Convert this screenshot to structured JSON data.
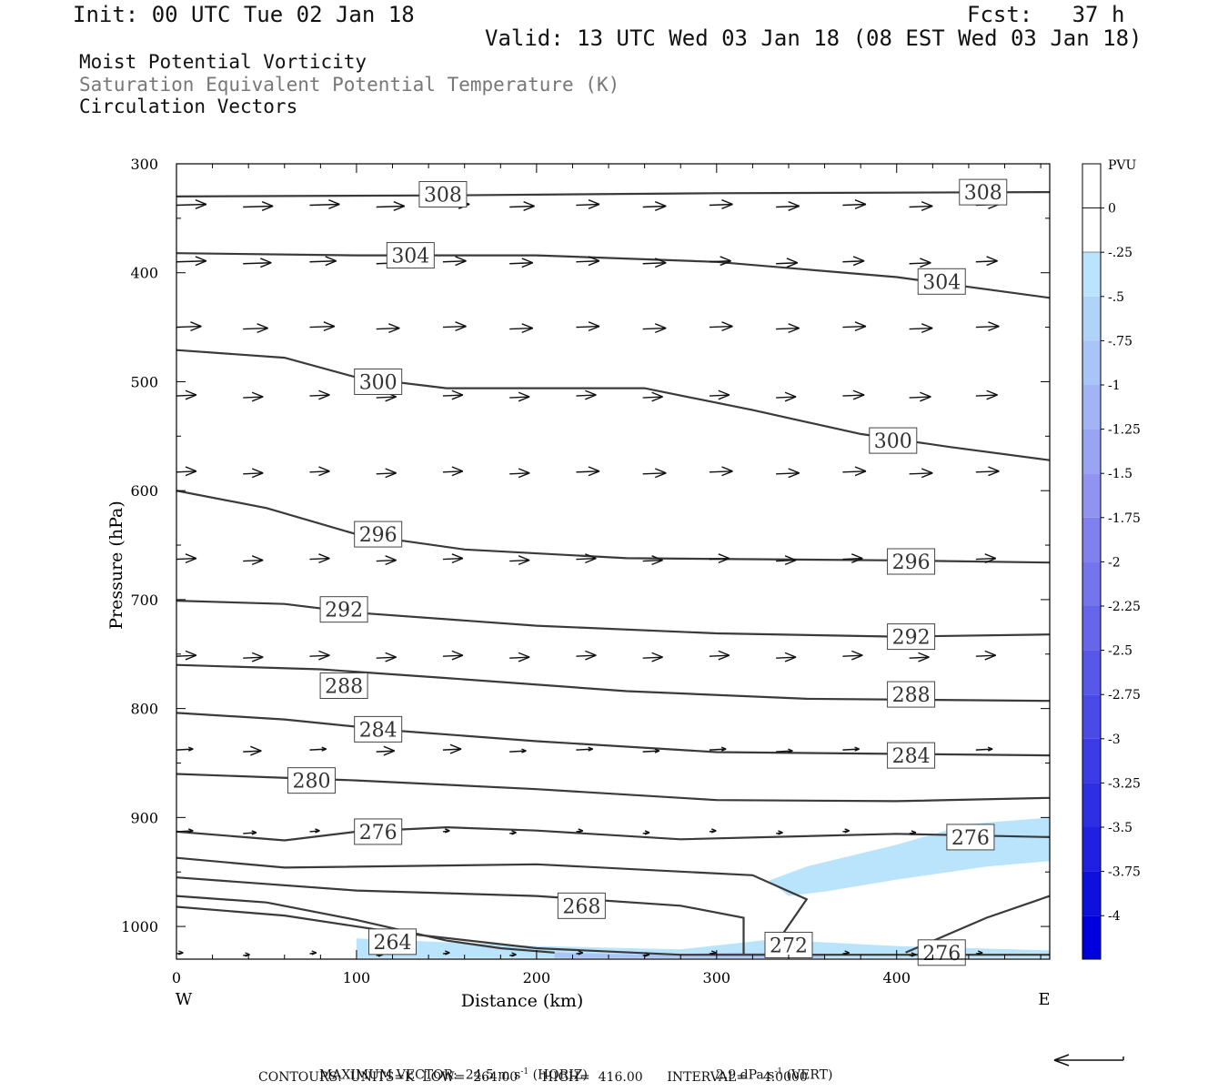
{
  "header": {
    "init": "Init: 00 UTC Tue 02 Jan 18",
    "fcst": "Fcst:   37 h",
    "valid": "Valid: 13 UTC Wed 03 Jan 18 (08 EST Wed 03 Jan 18)",
    "fields": [
      "Moist Potential Vorticity",
      "Saturation Equivalent Potential Temperature (K)",
      "Circulation Vectors"
    ]
  },
  "colors": {
    "contour": "#3a3a3a",
    "pv_light": "#b9e4fb",
    "pv_mid": "#a9c4f6",
    "text": "#111111"
  },
  "chart_data": {
    "type": "cross-section",
    "xlabel": "Distance (km)",
    "ylabel": "Pressure (hPa)",
    "xlim": [
      0,
      485
    ],
    "ylim": [
      1030,
      300
    ],
    "y_log_pressure": false,
    "x_ticks": [
      "0",
      "100",
      "200",
      "300",
      "400"
    ],
    "y_ticks": [
      "300",
      "400",
      "500",
      "600",
      "700",
      "800",
      "900",
      "1000"
    ],
    "x_end_labels": {
      "left": "W",
      "right": "E"
    },
    "contour_labels": [
      "308",
      "308",
      "304",
      "304",
      "300",
      "300",
      "296",
      "296",
      "292",
      "292",
      "288",
      "288",
      "284",
      "284",
      "280",
      "276",
      "276",
      "268",
      "264",
      "272",
      "276"
    ],
    "contours": [
      {
        "value": 308,
        "points": [
          [
            0,
            330
          ],
          [
            150,
            329
          ],
          [
            300,
            327
          ],
          [
            485,
            326
          ]
        ]
      },
      {
        "value": 304,
        "points": [
          [
            0,
            382
          ],
          [
            100,
            384
          ],
          [
            200,
            384
          ],
          [
            300,
            390
          ],
          [
            400,
            404
          ],
          [
            485,
            423
          ]
        ]
      },
      {
        "value": 300,
        "points": [
          [
            0,
            471
          ],
          [
            60,
            478
          ],
          [
            100,
            496
          ],
          [
            150,
            506
          ],
          [
            260,
            506
          ],
          [
            320,
            526
          ],
          [
            380,
            548
          ],
          [
            430,
            560
          ],
          [
            485,
            572
          ]
        ]
      },
      {
        "value": 296,
        "points": [
          [
            0,
            600
          ],
          [
            50,
            616
          ],
          [
            100,
            640
          ],
          [
            160,
            654
          ],
          [
            250,
            662
          ],
          [
            400,
            664
          ],
          [
            485,
            666
          ]
        ]
      },
      {
        "value": 292,
        "points": [
          [
            0,
            701
          ],
          [
            60,
            704
          ],
          [
            100,
            712
          ],
          [
            200,
            724
          ],
          [
            300,
            731
          ],
          [
            400,
            734
          ],
          [
            485,
            732
          ]
        ]
      },
      {
        "value": 288,
        "points": [
          [
            0,
            760
          ],
          [
            80,
            764
          ],
          [
            150,
            772
          ],
          [
            250,
            784
          ],
          [
            350,
            791
          ],
          [
            485,
            793
          ]
        ]
      },
      {
        "value": 284,
        "points": [
          [
            0,
            804
          ],
          [
            60,
            810
          ],
          [
            120,
            820
          ],
          [
            200,
            830
          ],
          [
            300,
            840
          ],
          [
            485,
            843
          ]
        ]
      },
      {
        "value": 280,
        "points": [
          [
            0,
            860
          ],
          [
            100,
            866
          ],
          [
            200,
            874
          ],
          [
            300,
            884
          ],
          [
            400,
            885
          ],
          [
            485,
            882
          ]
        ]
      },
      {
        "value": 276,
        "points": [
          [
            0,
            913
          ],
          [
            60,
            921
          ],
          [
            100,
            913
          ],
          [
            150,
            909
          ],
          [
            200,
            912
          ],
          [
            280,
            920
          ],
          [
            400,
            915
          ],
          [
            485,
            918
          ]
        ]
      },
      {
        "value": 272,
        "points": [
          [
            0,
            937
          ],
          [
            60,
            946
          ],
          [
            200,
            943
          ],
          [
            320,
            953
          ],
          [
            350,
            975
          ],
          [
            330,
            1023
          ]
        ]
      },
      {
        "value": 268,
        "points": [
          [
            0,
            955
          ],
          [
            100,
            967
          ],
          [
            200,
            972
          ],
          [
            280,
            981
          ],
          [
            315,
            992
          ],
          [
            315,
            1025
          ]
        ]
      },
      {
        "value": 264,
        "points": [
          [
            0,
            972
          ],
          [
            50,
            978
          ],
          [
            100,
            994
          ],
          [
            150,
            1013
          ],
          [
            180,
            1020
          ],
          [
            210,
            1024
          ]
        ]
      },
      {
        "value": 264,
        "points": [
          [
            0,
            982
          ],
          [
            60,
            990
          ],
          [
            120,
            1005
          ],
          [
            200,
            1020
          ],
          [
            280,
            1026
          ],
          [
            485,
            1026
          ]
        ]
      },
      {
        "value": 276,
        "points": [
          [
            405,
            1024
          ],
          [
            450,
            992
          ],
          [
            485,
            972
          ]
        ]
      }
    ],
    "pv_shading": [
      {
        "range": [
          -0.5,
          -0.25
        ],
        "polygon": [
          [
            329,
            958
          ],
          [
            350,
            945
          ],
          [
            400,
            925
          ],
          [
            440,
            906
          ],
          [
            485,
            900
          ],
          [
            485,
            940
          ],
          [
            450,
            945
          ],
          [
            400,
            957
          ],
          [
            360,
            968
          ],
          [
            340,
            972
          ]
        ]
      },
      {
        "range": [
          -0.5,
          -0.25
        ],
        "polygon": [
          [
            100,
            1011
          ],
          [
            200,
            1018
          ],
          [
            280,
            1021
          ],
          [
            330,
            1012
          ],
          [
            400,
            1018
          ],
          [
            485,
            1022
          ],
          [
            485,
            1029
          ],
          [
            100,
            1029
          ]
        ]
      },
      {
        "range": [
          -0.75,
          -0.5
        ],
        "polygon": [
          [
            210,
            1024
          ],
          [
            260,
            1026
          ],
          [
            310,
            1024
          ],
          [
            360,
            1025
          ],
          [
            360,
            1029
          ],
          [
            210,
            1029
          ]
        ]
      }
    ],
    "vectors": [
      {
        "p": 338,
        "x0": 0,
        "dx": 37,
        "n": 13,
        "lengths": [
          36,
          36,
          36,
          34,
          32,
          30,
          28,
          28,
          28,
          28,
          28,
          28,
          28
        ]
      },
      {
        "p": 390,
        "x0": 0,
        "dx": 37,
        "n": 13,
        "lengths": [
          36,
          34,
          32,
          30,
          28,
          28,
          28,
          28,
          26,
          26,
          26,
          26,
          26
        ]
      },
      {
        "p": 450,
        "x0": 0,
        "dx": 37,
        "n": 13,
        "lengths": [
          30,
          30,
          30,
          28,
          28,
          28,
          28,
          28,
          28,
          28,
          28,
          28,
          28
        ]
      },
      {
        "p": 513,
        "x0": 0,
        "dx": 37,
        "n": 13,
        "lengths": [
          24,
          24,
          24,
          24,
          24,
          24,
          24,
          24,
          24,
          24,
          26,
          26,
          26
        ]
      },
      {
        "p": 583,
        "x0": 0,
        "dx": 37,
        "n": 13,
        "lengths": [
          24,
          24,
          24,
          24,
          24,
          24,
          28,
          28,
          28,
          28,
          28,
          28,
          28
        ]
      },
      {
        "p": 663,
        "x0": 0,
        "dx": 37,
        "n": 13,
        "lengths": [
          24,
          24,
          24,
          24,
          24,
          24,
          24,
          24,
          24,
          24,
          24,
          24,
          24
        ]
      },
      {
        "p": 752,
        "x0": 0,
        "dx": 37,
        "n": 13,
        "lengths": [
          24,
          24,
          24,
          24,
          24,
          24,
          24,
          24,
          24,
          24,
          24,
          24,
          24
        ]
      },
      {
        "p": 838,
        "x0": 0,
        "dx": 37,
        "n": 13,
        "lengths": [
          20,
          22,
          20,
          22,
          22,
          20,
          20,
          20,
          20,
          20,
          20,
          20,
          20
        ]
      },
      {
        "p": 913,
        "x0": 0,
        "dx": 37,
        "n": 13,
        "lengths": [
          20,
          16,
          12,
          10,
          8,
          8,
          8,
          8,
          8,
          8,
          8,
          8,
          8
        ]
      },
      {
        "p": 1025,
        "x0": 0,
        "dx": 37,
        "n": 13,
        "lengths": [
          8,
          8,
          8,
          8,
          8,
          8,
          8,
          8,
          8,
          8,
          8,
          8,
          8
        ]
      }
    ],
    "colorbar": {
      "unit": "PVU",
      "labels": [
        "0",
        "-.25",
        "-.5",
        "-.75",
        "-1",
        "-1.25",
        "-1.5",
        "-1.75",
        "-2",
        "-2.25",
        "-2.5",
        "-2.75",
        "-3",
        "-3.25",
        "-3.5",
        "-3.75",
        "-4"
      ],
      "colors": [
        "#ffffff",
        "#ffffff",
        "#b9e4fb",
        "#b0d4f8",
        "#a9c4f6",
        "#a2b4f4",
        "#99a4f2",
        "#9094f0",
        "#8080ee",
        "#7474ec",
        "#6666ea",
        "#5858e8",
        "#4a4ae6",
        "#3c3ce4",
        "#2e2ee2",
        "#2020e0",
        "#1010de",
        "#0000dc"
      ]
    },
    "footer": {
      "max_vector": "MAXIMUM VECTOR:  24.5 m s",
      "horiz": "(HORIZ)",
      "vert_val": "2.9 dPa s",
      "vert": "(VERT)",
      "contours": "CONTOURS:  UNITS=K  LOW=  264.00      HIGH=  416.00      INTERVAL=    4.0000"
    }
  }
}
